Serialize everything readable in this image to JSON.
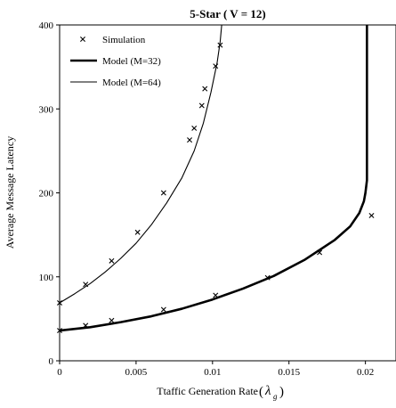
{
  "chart_data": {
    "type": "scatter",
    "title": "5-Star ( V = 12)",
    "xlabel": "Ttaffic Generation Rate",
    "xlabel_symbol": "λ",
    "xlabel_subscript": "g",
    "ylabel": "Average Message Latency",
    "xlim": [
      0,
      0.022
    ],
    "ylim": [
      0,
      400
    ],
    "xticks": [
      0,
      0.005,
      0.01,
      0.015,
      0.02
    ],
    "xtick_labels": [
      "0",
      "0.005",
      "0.01",
      "0.015",
      "0.02"
    ],
    "yticks": [
      0,
      100,
      200,
      300,
      400
    ],
    "ytick_labels": [
      "0",
      "100",
      "200",
      "300",
      "400"
    ],
    "grid": false,
    "legend_position": "top-left",
    "series": [
      {
        "name": "Simulation",
        "kind": "markers",
        "marker": "x",
        "points": [
          [
            0,
            69
          ],
          [
            0.0017,
            91
          ],
          [
            0.0034,
            119
          ],
          [
            0.0051,
            153
          ],
          [
            0.0068,
            200
          ],
          [
            0.0085,
            263
          ],
          [
            0.0088,
            277
          ],
          [
            0.0093,
            304
          ],
          [
            0.0095,
            324
          ],
          [
            0.0102,
            351
          ],
          [
            0.0105,
            376
          ],
          [
            0,
            36
          ],
          [
            0.0017,
            42
          ],
          [
            0.0034,
            48
          ],
          [
            0.0068,
            61
          ],
          [
            0.0102,
            78
          ],
          [
            0.0136,
            99
          ],
          [
            0.017,
            129
          ],
          [
            0.0204,
            173
          ]
        ]
      },
      {
        "name": "Model (M=32)",
        "kind": "line",
        "line_width": "thick",
        "points": [
          [
            0,
            36
          ],
          [
            0.002,
            40
          ],
          [
            0.004,
            46
          ],
          [
            0.006,
            53
          ],
          [
            0.008,
            62
          ],
          [
            0.01,
            73
          ],
          [
            0.012,
            86
          ],
          [
            0.014,
            101
          ],
          [
            0.016,
            120
          ],
          [
            0.018,
            144
          ],
          [
            0.019,
            160
          ],
          [
            0.0196,
            176
          ],
          [
            0.0199,
            190
          ],
          [
            0.02,
            200
          ],
          [
            0.0201,
            215
          ],
          [
            0.0201,
            400
          ]
        ]
      },
      {
        "name": "Model (M=64)",
        "kind": "line",
        "line_width": "thin",
        "points": [
          [
            0,
            69
          ],
          [
            0.001,
            80
          ],
          [
            0.002,
            92
          ],
          [
            0.003,
            106
          ],
          [
            0.004,
            122
          ],
          [
            0.005,
            140
          ],
          [
            0.006,
            162
          ],
          [
            0.007,
            188
          ],
          [
            0.008,
            218
          ],
          [
            0.0088,
            250
          ],
          [
            0.0094,
            283
          ],
          [
            0.0099,
            320
          ],
          [
            0.0103,
            355
          ],
          [
            0.0105,
            380
          ],
          [
            0.0106,
            400
          ]
        ]
      }
    ]
  }
}
